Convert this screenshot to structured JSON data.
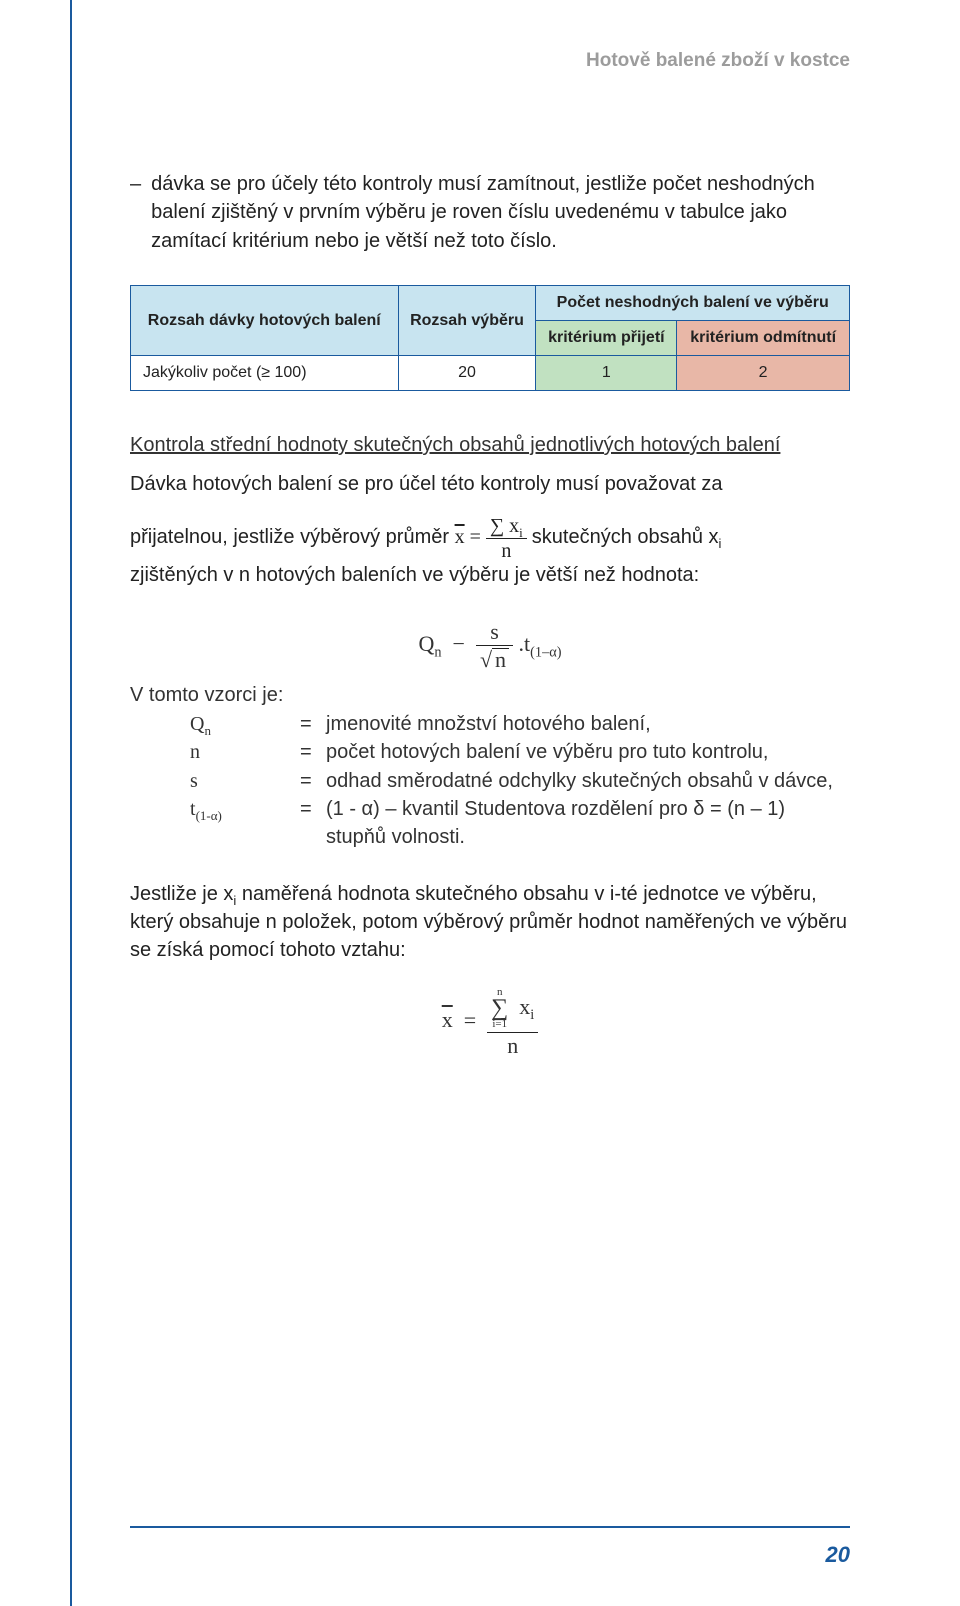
{
  "colors": {
    "rule_blue": "#1a5a9e",
    "header_blue_bg": "#c8e4f0",
    "accept_green": "#c1e1c1",
    "reject_salmon": "#e8b7a7",
    "running_head_gray": "#9c9c9c",
    "text": "#222222",
    "page_bg": "#ffffff"
  },
  "typography": {
    "body_size_pt": 15,
    "table_size_pt": 12,
    "running_head_size_pt": 14,
    "page_num_size_pt": 16
  },
  "running_head": "Hotově balené zboží v kostce",
  "bullet": {
    "dash": "–",
    "text": "dávka se pro účely této kontroly musí zamítnout, jestliže počet neshodných balení zjištěný v prvním výběru je roven číslu uvedenému v tabulce jako zamítací kritérium nebo je větší než toto číslo."
  },
  "table": {
    "headers": {
      "col1": "Rozsah dávky hotových balení",
      "col2": "Rozsah výběru",
      "col3_span": "Počet neshodných balení ve výběru",
      "col3a": "kritérium přijetí",
      "col3b": "kritérium odmítnutí"
    },
    "row": {
      "c1": "Jakýkoliv počet (≥ 100)",
      "c2": "20",
      "c3": "1",
      "c4": "2"
    }
  },
  "section_title": "Kontrola střední hodnoty skutečných obsahů jednotlivých hotových balení",
  "para_intro": "Dávka hotových balení se pro účel této kontroly musí považovat za",
  "mean_line": {
    "pre": "přijatelnou, jestliže výběrový průměr ",
    "post": " skutečných obsahů x",
    "sub_i": "i"
  },
  "para_after_mean": "zjištěných v n hotových baleních ve výběru je větší než hodnota:",
  "formula_main": {
    "Q": "Q",
    "Q_sub": "n",
    "minus": "−",
    "s": "s",
    "n": "n",
    "dot": "·",
    "t": "t",
    "t_sub": "(1–α)"
  },
  "defs": {
    "intro": "V tomto vzorci je:",
    "rows": [
      {
        "sym": "Q<sub>n</sub>",
        "text": "jmenovité množství hotového balení,"
      },
      {
        "sym": "n",
        "text": "počet hotových balení ve výběru pro tuto kontrolu,"
      },
      {
        "sym": "s",
        "text": "odhad směrodatné odchylky skutečných obsahů v dávce,"
      },
      {
        "sym": "t<sub>(1-α)</sub>",
        "text": "(1 - α) – kvantil Studentova rozdělení pro δ = (n – 1) stupňů volnosti."
      }
    ],
    "eq": "="
  },
  "para_final": "Jestliže je x<sub>i</sub> naměřená hodnota skutečného obsahu v i-té jednotce ve výběru, který obsahuje n položek, potom výběrový průměr hodnot naměřených ve výběru se získá pomocí tohoto vztahu:",
  "formula_xbar": {
    "upper": "n",
    "lower": "i=1",
    "xi": "x",
    "xi_sub": "i",
    "den": "n",
    "lhs": "x",
    "eq": "="
  },
  "page_number": "20"
}
